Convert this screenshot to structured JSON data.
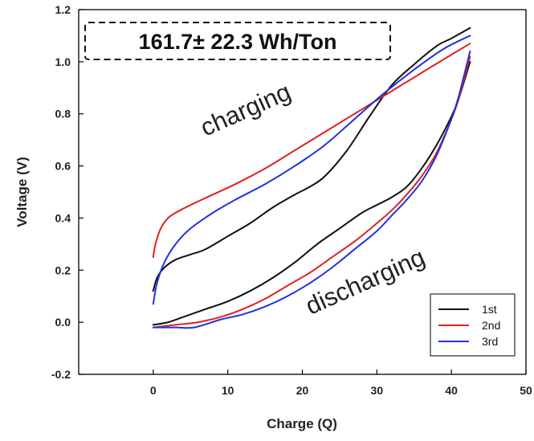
{
  "chart_data": {
    "type": "line",
    "xlabel": "Charge (Q)",
    "ylabel": "Voltage (V)",
    "xlim": [
      -10,
      50
    ],
    "ylim": [
      -0.2,
      1.2
    ],
    "xticks": [
      "0",
      "10",
      "20",
      "30",
      "40",
      "50"
    ],
    "yticks": [
      "-0.2",
      "0.0",
      "0.2",
      "0.4",
      "0.6",
      "0.8",
      "1.0",
      "1.2"
    ],
    "annotation": "161.7± 22.3 Wh/Ton",
    "region_labels": {
      "charging": "charging",
      "discharging": "discharging"
    },
    "legend_position": "bottom-right",
    "grid": false,
    "series": [
      {
        "name": "1st",
        "color": "#111111",
        "charge": {
          "x": [
            0,
            0.5,
            1.5,
            3,
            5,
            7,
            10,
            13,
            16,
            19,
            21,
            23,
            26,
            29,
            32,
            35,
            38,
            40,
            42.5
          ],
          "y": [
            0.12,
            0.17,
            0.21,
            0.24,
            0.26,
            0.28,
            0.33,
            0.38,
            0.44,
            0.49,
            0.52,
            0.56,
            0.66,
            0.79,
            0.91,
            0.99,
            1.06,
            1.09,
            1.13
          ]
        },
        "discharge": {
          "x": [
            42.5,
            41,
            40,
            38,
            36,
            34,
            32,
            30,
            28,
            25,
            22,
            19,
            16,
            13,
            10,
            7,
            4,
            2,
            0
          ],
          "y": [
            1.0,
            0.86,
            0.79,
            0.68,
            0.59,
            0.52,
            0.48,
            0.45,
            0.42,
            0.36,
            0.3,
            0.23,
            0.17,
            0.12,
            0.08,
            0.05,
            0.02,
            0.0,
            -0.01
          ]
        }
      },
      {
        "name": "2nd",
        "color": "#e02020",
        "charge": {
          "x": [
            0,
            0.3,
            1,
            2,
            3,
            5,
            8,
            11,
            15,
            19,
            23,
            27,
            31,
            35,
            39,
            42.5
          ],
          "y": [
            0.25,
            0.3,
            0.36,
            0.4,
            0.42,
            0.45,
            0.49,
            0.53,
            0.59,
            0.66,
            0.73,
            0.8,
            0.87,
            0.94,
            1.01,
            1.07
          ]
        },
        "discharge": {
          "x": [
            42.5,
            41,
            40,
            38,
            36,
            34,
            32,
            30,
            27,
            24,
            21,
            18,
            15,
            12,
            9,
            6,
            3,
            0
          ],
          "y": [
            1.02,
            0.86,
            0.78,
            0.65,
            0.56,
            0.49,
            0.43,
            0.38,
            0.31,
            0.25,
            0.19,
            0.14,
            0.09,
            0.05,
            0.02,
            0.0,
            -0.01,
            -0.02
          ]
        }
      },
      {
        "name": "3rd",
        "color": "#2030e0",
        "charge": {
          "x": [
            0,
            0.5,
            1.5,
            3,
            5,
            8,
            11,
            15,
            19,
            23,
            27,
            31,
            35,
            39,
            42.5
          ],
          "y": [
            0.07,
            0.15,
            0.23,
            0.3,
            0.36,
            0.42,
            0.47,
            0.53,
            0.6,
            0.68,
            0.78,
            0.88,
            0.97,
            1.05,
            1.1
          ]
        },
        "discharge": {
          "x": [
            42.5,
            41,
            40,
            38,
            36,
            34,
            32,
            30,
            27,
            24,
            21,
            18,
            15,
            12,
            9,
            5.5,
            3,
            0
          ],
          "y": [
            1.04,
            0.87,
            0.78,
            0.64,
            0.54,
            0.47,
            0.41,
            0.35,
            0.28,
            0.21,
            0.15,
            0.1,
            0.06,
            0.03,
            0.01,
            -0.02,
            -0.02,
            -0.02
          ]
        }
      }
    ]
  }
}
